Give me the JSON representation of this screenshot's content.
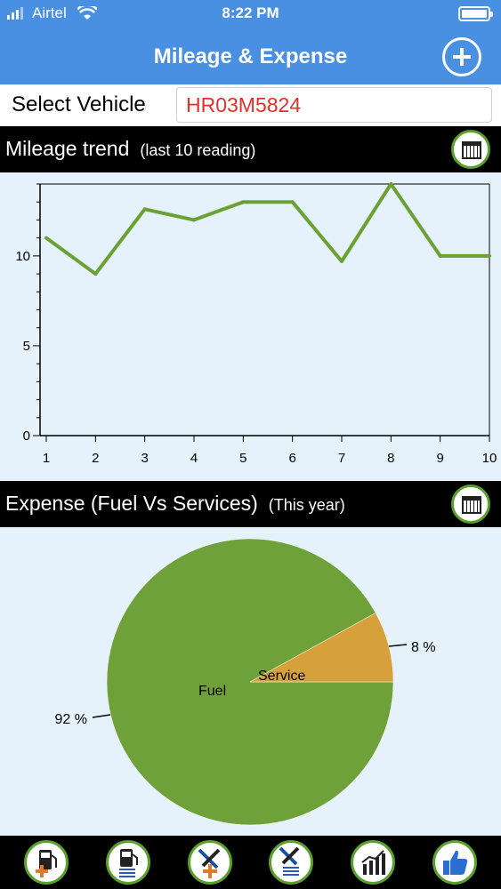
{
  "status": {
    "carrier": "Airtel",
    "time": "8:22 PM"
  },
  "nav": {
    "title": "Mileage & Expense",
    "add_icon": "plus-circle-icon"
  },
  "vehicle": {
    "label": "Select Vehicle",
    "value": "HR03M5824",
    "value_color": "#e0302a"
  },
  "mileage_section": {
    "title": "Mileage trend",
    "subtitle": "(last 10 reading)",
    "icon": "calendar-icon"
  },
  "expense_section": {
    "title": "Expense (Fuel Vs Services)",
    "subtitle": "(This year)",
    "icon": "calendar-icon"
  },
  "chart_data": [
    {
      "type": "line",
      "x": [
        1,
        2,
        3,
        4,
        5,
        6,
        7,
        8,
        9,
        10
      ],
      "series": [
        {
          "values": [
            11,
            9,
            12.6,
            12,
            13,
            13,
            9.7,
            14,
            10,
            10
          ]
        }
      ],
      "xlim": [
        1,
        10
      ],
      "ylim": [
        0,
        14
      ],
      "yticks": [
        0,
        5,
        10
      ],
      "xticks": [
        1,
        2,
        3,
        4,
        5,
        6,
        7,
        8,
        9,
        10
      ],
      "color": "#6aa132",
      "grid": false
    },
    {
      "type": "pie",
      "slices": [
        {
          "label": "Fuel",
          "value": 92,
          "pct_label": "92 %",
          "color": "#6fa13a"
        },
        {
          "label": "Service",
          "value": 8,
          "pct_label": "8 %",
          "color": "#d6a13a"
        }
      ]
    }
  ],
  "tab_bar": [
    {
      "name": "add-fuel-tab",
      "icon": "fuel-pump-add-icon"
    },
    {
      "name": "fuel-list-tab",
      "icon": "fuel-pump-list-icon"
    },
    {
      "name": "add-service-tab",
      "icon": "tools-add-icon"
    },
    {
      "name": "service-list-tab",
      "icon": "tools-list-icon"
    },
    {
      "name": "report-tab",
      "icon": "bar-chart-icon"
    },
    {
      "name": "rate-tab",
      "icon": "thumbs-up-icon"
    }
  ]
}
